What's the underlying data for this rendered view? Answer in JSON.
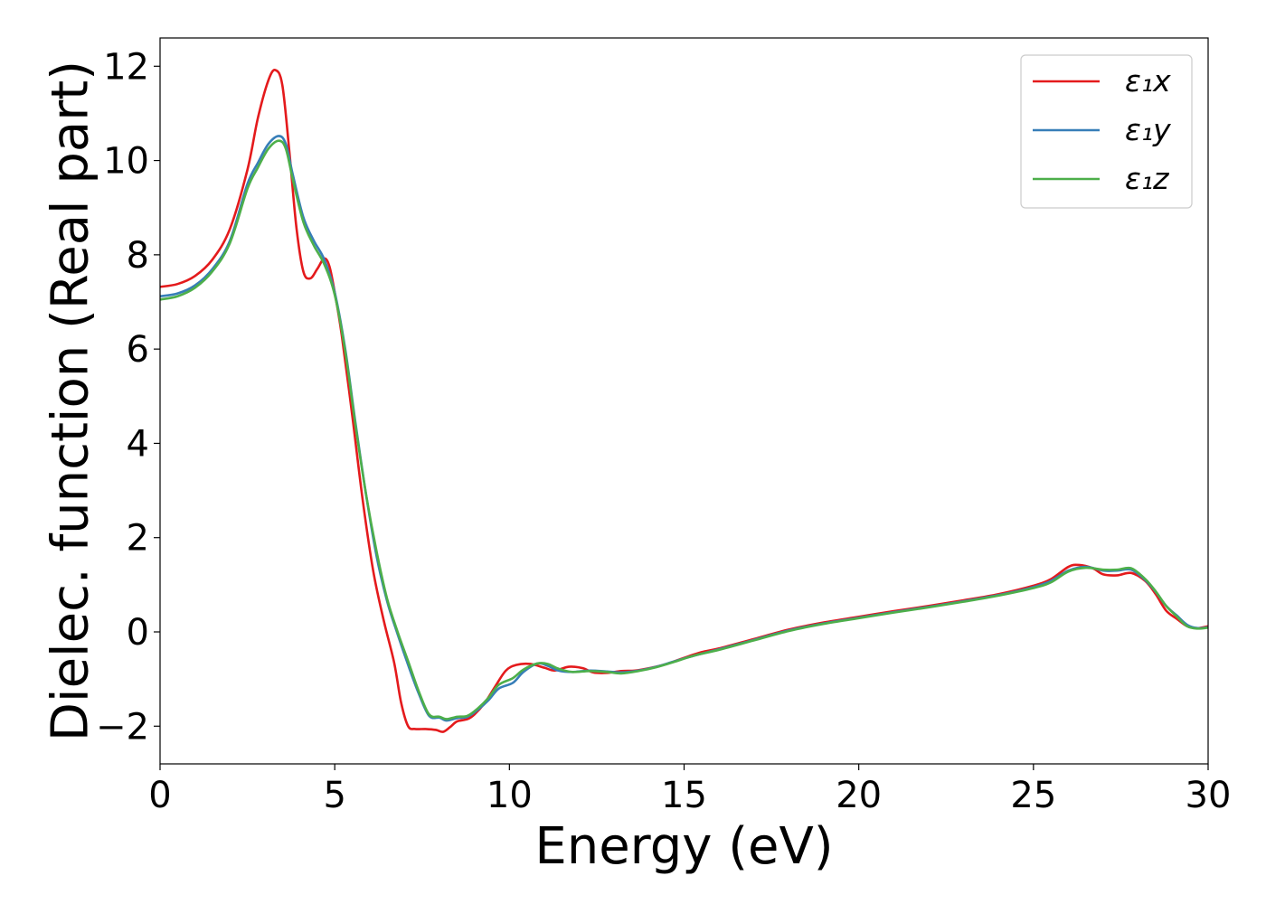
{
  "chart_data": {
    "type": "line",
    "title": "",
    "xlabel": "Energy (eV)",
    "ylabel": "Dielec. function (Real part)",
    "xlim": [
      0,
      30
    ],
    "ylim": [
      -2.8,
      12.6
    ],
    "xticks": [
      0,
      5,
      10,
      15,
      20,
      25,
      30
    ],
    "xtick_labels": [
      "0",
      "5",
      "10",
      "15",
      "20",
      "25",
      "30"
    ],
    "yticks": [
      -2,
      0,
      2,
      4,
      6,
      8,
      10,
      12
    ],
    "ytick_labels": [
      "−2",
      "0",
      "2",
      "4",
      "6",
      "8",
      "10",
      "12"
    ],
    "grid": false,
    "legend_position": "top-right",
    "series": [
      {
        "name": "ε₁x",
        "color": "#e41a1c",
        "points": [
          [
            0,
            7.32
          ],
          [
            0.5,
            7.38
          ],
          [
            1,
            7.55
          ],
          [
            1.5,
            7.9
          ],
          [
            2,
            8.55
          ],
          [
            2.5,
            9.8
          ],
          [
            2.8,
            10.9
          ],
          [
            3.1,
            11.7
          ],
          [
            3.3,
            11.92
          ],
          [
            3.5,
            11.6
          ],
          [
            3.7,
            10.2
          ],
          [
            3.9,
            8.6
          ],
          [
            4.1,
            7.65
          ],
          [
            4.3,
            7.5
          ],
          [
            4.5,
            7.7
          ],
          [
            4.7,
            7.92
          ],
          [
            4.85,
            7.75
          ],
          [
            5.0,
            7.2
          ],
          [
            5.2,
            6.3
          ],
          [
            5.5,
            4.6
          ],
          [
            5.8,
            2.8
          ],
          [
            6.1,
            1.3
          ],
          [
            6.4,
            0.25
          ],
          [
            6.7,
            -0.65
          ],
          [
            6.9,
            -1.5
          ],
          [
            7.1,
            -2.0
          ],
          [
            7.3,
            -2.06
          ],
          [
            7.6,
            -2.06
          ],
          [
            7.9,
            -2.08
          ],
          [
            8.1,
            -2.12
          ],
          [
            8.3,
            -2.02
          ],
          [
            8.5,
            -1.9
          ],
          [
            8.8,
            -1.85
          ],
          [
            9.0,
            -1.75
          ],
          [
            9.3,
            -1.5
          ],
          [
            9.6,
            -1.15
          ],
          [
            9.9,
            -0.82
          ],
          [
            10.2,
            -0.7
          ],
          [
            10.6,
            -0.68
          ],
          [
            11.0,
            -0.76
          ],
          [
            11.3,
            -0.82
          ],
          [
            11.7,
            -0.74
          ],
          [
            12.1,
            -0.77
          ],
          [
            12.4,
            -0.86
          ],
          [
            12.8,
            -0.87
          ],
          [
            13.2,
            -0.83
          ],
          [
            13.6,
            -0.82
          ],
          [
            14.0,
            -0.77
          ],
          [
            14.5,
            -0.68
          ],
          [
            15.0,
            -0.55
          ],
          [
            15.5,
            -0.43
          ],
          [
            16.0,
            -0.35
          ],
          [
            17.0,
            -0.15
          ],
          [
            18.0,
            0.05
          ],
          [
            19.0,
            0.2
          ],
          [
            20.0,
            0.32
          ],
          [
            21.0,
            0.44
          ],
          [
            22.0,
            0.55
          ],
          [
            23.0,
            0.67
          ],
          [
            24.0,
            0.8
          ],
          [
            25.0,
            0.98
          ],
          [
            25.5,
            1.12
          ],
          [
            26.0,
            1.38
          ],
          [
            26.3,
            1.42
          ],
          [
            26.7,
            1.35
          ],
          [
            27.0,
            1.22
          ],
          [
            27.4,
            1.2
          ],
          [
            27.8,
            1.25
          ],
          [
            28.2,
            1.08
          ],
          [
            28.5,
            0.8
          ],
          [
            28.8,
            0.45
          ],
          [
            29.1,
            0.28
          ],
          [
            29.4,
            0.12
          ],
          [
            29.7,
            0.08
          ],
          [
            30,
            0.12
          ]
        ]
      },
      {
        "name": "ε₁y",
        "color": "#377eb8",
        "points": [
          [
            0,
            7.12
          ],
          [
            0.5,
            7.18
          ],
          [
            1,
            7.35
          ],
          [
            1.5,
            7.7
          ],
          [
            2,
            8.3
          ],
          [
            2.5,
            9.5
          ],
          [
            2.8,
            9.95
          ],
          [
            3.1,
            10.35
          ],
          [
            3.4,
            10.52
          ],
          [
            3.6,
            10.35
          ],
          [
            3.8,
            9.7
          ],
          [
            4.1,
            8.8
          ],
          [
            4.4,
            8.3
          ],
          [
            4.7,
            7.9
          ],
          [
            5.0,
            7.2
          ],
          [
            5.3,
            6.0
          ],
          [
            5.6,
            4.4
          ],
          [
            5.9,
            2.9
          ],
          [
            6.2,
            1.6
          ],
          [
            6.5,
            0.65
          ],
          [
            6.8,
            -0.05
          ],
          [
            7.1,
            -0.7
          ],
          [
            7.4,
            -1.3
          ],
          [
            7.7,
            -1.78
          ],
          [
            8.0,
            -1.82
          ],
          [
            8.2,
            -1.88
          ],
          [
            8.5,
            -1.83
          ],
          [
            8.8,
            -1.8
          ],
          [
            9.1,
            -1.65
          ],
          [
            9.4,
            -1.45
          ],
          [
            9.7,
            -1.2
          ],
          [
            10.1,
            -1.08
          ],
          [
            10.4,
            -0.85
          ],
          [
            10.8,
            -0.67
          ],
          [
            11.1,
            -0.72
          ],
          [
            11.4,
            -0.82
          ],
          [
            11.8,
            -0.85
          ],
          [
            12.3,
            -0.82
          ],
          [
            12.8,
            -0.84
          ],
          [
            13.2,
            -0.86
          ],
          [
            13.7,
            -0.82
          ],
          [
            14.2,
            -0.74
          ],
          [
            14.7,
            -0.63
          ],
          [
            15.3,
            -0.5
          ],
          [
            16.0,
            -0.37
          ],
          [
            17.0,
            -0.17
          ],
          [
            18.0,
            0.03
          ],
          [
            19.0,
            0.18
          ],
          [
            20.0,
            0.3
          ],
          [
            21.0,
            0.42
          ],
          [
            22.0,
            0.53
          ],
          [
            23.0,
            0.65
          ],
          [
            24.0,
            0.78
          ],
          [
            25.0,
            0.95
          ],
          [
            25.5,
            1.08
          ],
          [
            26.0,
            1.3
          ],
          [
            26.5,
            1.38
          ],
          [
            27.0,
            1.3
          ],
          [
            27.4,
            1.3
          ],
          [
            27.8,
            1.32
          ],
          [
            28.2,
            1.1
          ],
          [
            28.5,
            0.85
          ],
          [
            28.8,
            0.55
          ],
          [
            29.1,
            0.35
          ],
          [
            29.4,
            0.15
          ],
          [
            29.7,
            0.08
          ],
          [
            30,
            0.1
          ]
        ]
      },
      {
        "name": "ε₁z",
        "color": "#4daf4a",
        "points": [
          [
            0,
            7.05
          ],
          [
            0.5,
            7.12
          ],
          [
            1,
            7.3
          ],
          [
            1.5,
            7.65
          ],
          [
            2,
            8.25
          ],
          [
            2.5,
            9.4
          ],
          [
            2.8,
            9.85
          ],
          [
            3.1,
            10.25
          ],
          [
            3.4,
            10.42
          ],
          [
            3.6,
            10.25
          ],
          [
            3.8,
            9.6
          ],
          [
            4.1,
            8.7
          ],
          [
            4.4,
            8.2
          ],
          [
            4.7,
            7.8
          ],
          [
            5.0,
            7.15
          ],
          [
            5.3,
            5.95
          ],
          [
            5.6,
            4.35
          ],
          [
            5.9,
            2.9
          ],
          [
            6.2,
            1.7
          ],
          [
            6.5,
            0.7
          ],
          [
            6.8,
            0.0
          ],
          [
            7.1,
            -0.62
          ],
          [
            7.4,
            -1.25
          ],
          [
            7.7,
            -1.75
          ],
          [
            8.0,
            -1.8
          ],
          [
            8.2,
            -1.85
          ],
          [
            8.5,
            -1.8
          ],
          [
            8.8,
            -1.78
          ],
          [
            9.1,
            -1.62
          ],
          [
            9.4,
            -1.4
          ],
          [
            9.7,
            -1.12
          ],
          [
            10.1,
            -0.98
          ],
          [
            10.4,
            -0.8
          ],
          [
            10.8,
            -0.67
          ],
          [
            11.1,
            -0.68
          ],
          [
            11.4,
            -0.78
          ],
          [
            11.8,
            -0.85
          ],
          [
            12.3,
            -0.83
          ],
          [
            12.8,
            -0.85
          ],
          [
            13.2,
            -0.88
          ],
          [
            13.7,
            -0.83
          ],
          [
            14.2,
            -0.75
          ],
          [
            14.7,
            -0.64
          ],
          [
            15.3,
            -0.5
          ],
          [
            16.0,
            -0.38
          ],
          [
            17.0,
            -0.18
          ],
          [
            18.0,
            0.02
          ],
          [
            19.0,
            0.17
          ],
          [
            20.0,
            0.29
          ],
          [
            21.0,
            0.41
          ],
          [
            22.0,
            0.52
          ],
          [
            23.0,
            0.64
          ],
          [
            24.0,
            0.77
          ],
          [
            25.0,
            0.93
          ],
          [
            25.5,
            1.05
          ],
          [
            26.0,
            1.28
          ],
          [
            26.5,
            1.36
          ],
          [
            27.0,
            1.32
          ],
          [
            27.4,
            1.32
          ],
          [
            27.8,
            1.35
          ],
          [
            28.2,
            1.12
          ],
          [
            28.5,
            0.86
          ],
          [
            28.8,
            0.55
          ],
          [
            29.1,
            0.33
          ],
          [
            29.4,
            0.12
          ],
          [
            29.7,
            0.07
          ],
          [
            30,
            0.09
          ]
        ]
      }
    ]
  }
}
